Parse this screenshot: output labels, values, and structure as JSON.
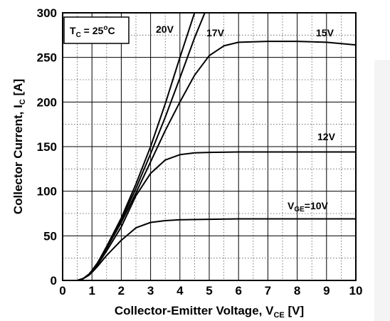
{
  "chart_data": {
    "type": "line",
    "title": "",
    "xlabel": {
      "main": "Collector-Emitter Voltage, V",
      "sub": "CE",
      "unit": " [V]"
    },
    "ylabel": {
      "main": "Collector Current, I",
      "sub": "C",
      "unit": " [A]"
    },
    "xlim": [
      0,
      10
    ],
    "ylim": [
      0,
      300
    ],
    "x_ticks": [
      "0",
      "1",
      "2",
      "3",
      "4",
      "5",
      "6",
      "7",
      "8",
      "9",
      "10"
    ],
    "y_ticks": [
      "0",
      "50",
      "100",
      "150",
      "200",
      "250",
      "300"
    ],
    "grid": "major solid, minor dotted",
    "condition_box": {
      "main": "T",
      "sub": "C",
      "eq": " = 25",
      "sup": "o",
      "unit": "C"
    },
    "series": [
      {
        "name": "20V",
        "x": [
          0.5,
          0.7,
          0.9,
          1.0,
          1.2,
          1.5,
          2.0,
          2.5,
          3.0,
          3.5,
          4.0,
          4.5
        ],
        "y": [
          0,
          2,
          7,
          11,
          20,
          38,
          70,
          108,
          150,
          198,
          250,
          300
        ]
      },
      {
        "name": "17V",
        "x": [
          0.5,
          0.7,
          0.9,
          1.0,
          1.2,
          1.5,
          2.0,
          2.5,
          3.0,
          3.5,
          4.0,
          4.5,
          4.85
        ],
        "y": [
          0,
          2,
          7,
          11,
          20,
          37,
          68,
          103,
          142,
          183,
          227,
          272,
          300
        ]
      },
      {
        "name": "15V",
        "x": [
          0.5,
          0.7,
          0.9,
          1.0,
          1.2,
          1.5,
          2.0,
          2.5,
          3.0,
          3.5,
          4.0,
          4.5,
          5.0,
          5.5,
          6.0,
          7.0,
          8.0,
          9.0,
          10.0
        ],
        "y": [
          0,
          2,
          7,
          11,
          20,
          36,
          65,
          98,
          133,
          168,
          200,
          230,
          252,
          263,
          267,
          268,
          268,
          267,
          264
        ]
      },
      {
        "name": "12V",
        "x": [
          0.5,
          0.7,
          0.9,
          1.0,
          1.2,
          1.5,
          2.0,
          2.5,
          3.0,
          3.5,
          4.0,
          4.5,
          5.0,
          6.0,
          8.0,
          10.0
        ],
        "y": [
          0,
          2,
          6,
          10,
          18,
          33,
          60,
          95,
          120,
          135,
          141,
          143,
          143.5,
          144,
          144,
          144
        ]
      },
      {
        "name": "10V",
        "label": {
          "main": "V",
          "sub": "GE",
          "rest": "=10V"
        },
        "x": [
          0.5,
          0.7,
          0.9,
          1.0,
          1.2,
          1.5,
          2.0,
          2.5,
          3.0,
          3.5,
          4.0,
          5.0,
          6.0,
          8.0,
          10.0
        ],
        "y": [
          0,
          2,
          6,
          9,
          16,
          28,
          45,
          59,
          65,
          67,
          68,
          68.5,
          69,
          69,
          69
        ]
      }
    ]
  }
}
